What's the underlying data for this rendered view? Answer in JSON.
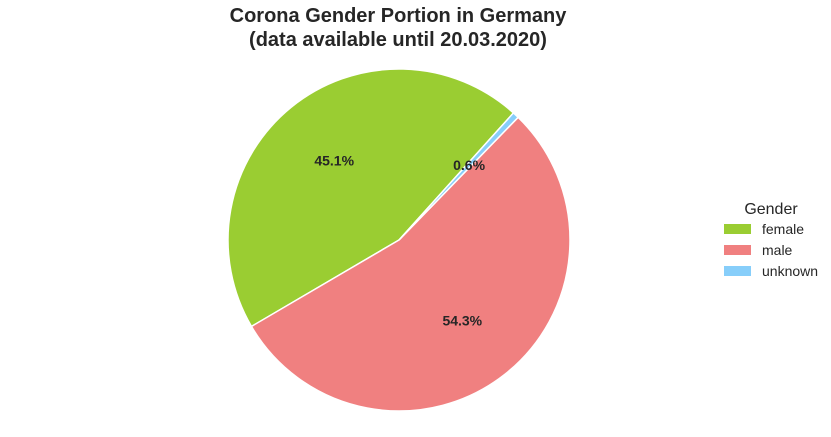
{
  "chart_data": {
    "type": "pie",
    "title": "Corona Gender Portion in Germany\n(data available until 20.03.2020)",
    "title_lines": [
      "Corona Gender Portion in Germany",
      "(data available until 20.03.2020)"
    ],
    "legend_title": "Gender",
    "legend_placement": "right",
    "categories": [
      "female",
      "male",
      "unknown"
    ],
    "values": [
      45.1,
      54.3,
      0.6
    ],
    "labels": [
      "45.1%",
      "54.3%",
      "0.6%"
    ],
    "colors": [
      "#9acd32",
      "#f08080",
      "#87cefa"
    ],
    "start_angle_deg": 48,
    "direction": "counterclockwise"
  }
}
